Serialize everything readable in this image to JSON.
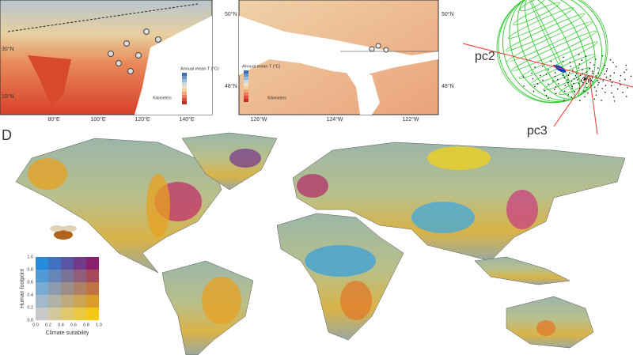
{
  "panel_a": {
    "x_ticks": [
      "80°E",
      "100°E",
      "120°E",
      "140°E"
    ],
    "y_ticks": [
      "30°N",
      "10°N"
    ],
    "legend_title": "Annual mean T (°C)",
    "scale_label": "Kilometers"
  },
  "panel_b": {
    "x_ticks": [
      "126°W",
      "124°W",
      "122°W"
    ],
    "y_ticks_left": [
      "50°N",
      "48°N"
    ],
    "y_ticks_right": [
      "50°N",
      "48°N"
    ],
    "legend_title": "Annual mean T (°C)",
    "scale_label": "Kilometers"
  },
  "panel_c": {
    "axis_labels": [
      "pc2",
      "pc3"
    ]
  },
  "panel_d": {
    "label": "D",
    "legend": {
      "y_title": "Human footprint",
      "x_title": "Climate suitability",
      "x_ticks": [
        "0.0",
        "0.2",
        "0.4",
        "0.6",
        "0.8",
        "1.0"
      ],
      "y_ticks": [
        "0.0",
        "0.2",
        "0.4",
        "0.6",
        "0.8",
        "1.0"
      ]
    }
  }
}
